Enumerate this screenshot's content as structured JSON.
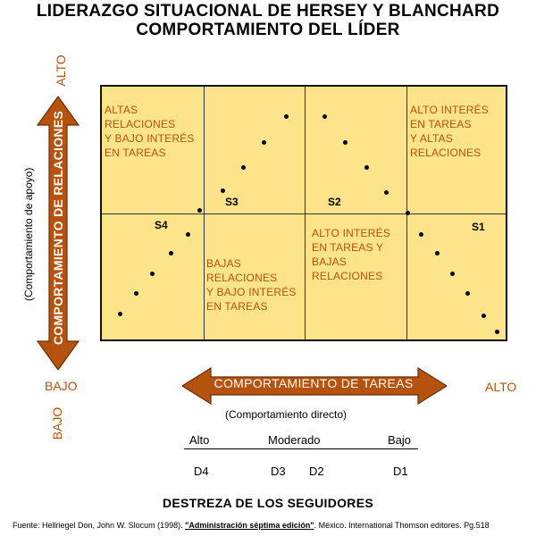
{
  "title": {
    "line1": "LIDERAZGO SITUACIONAL DE HERSEY Y BLANCHARD",
    "line2": "COMPORTAMIENTO DEL LÍDER"
  },
  "quadrants": {
    "top_left": "ALTAS\nRELACIONES\nY BAJO INTERÉS\nEN TAREAS",
    "top_right": "ALTO INTERÉS\nEN TAREAS\nY ALTAS\nRELACIONES",
    "bottom_middle_left": "BAJAS\nRELACIONES\nY BAJO INTERÉS\nEN TAREAS",
    "bottom_middle_right": "ALTO INTERÉS\nEN TAREAS Y\nBAJAS\nRELACIONES"
  },
  "styles": {
    "S1": "S1",
    "S2": "S2",
    "S3": "S3",
    "S4": "S4"
  },
  "vertical_axis": {
    "label": "COMPORTAMIENTO DE RELACIONES",
    "sublabel": "(Comportamiento de apoyo)",
    "high": "ALTO",
    "low": "BAJO"
  },
  "horizontal_axis": {
    "label": "COMPORTAMIENTO DE TAREAS",
    "sublabel": "(Comportamiento directo)",
    "low": "BAJO",
    "high": "ALTO"
  },
  "follower_scale": {
    "levels": [
      "Alto",
      "Moderado",
      "Bajo"
    ],
    "stages": [
      "D4",
      "D3",
      "D2",
      "D1"
    ],
    "title": "DESTREZA DE LOS SEGUIDORES"
  },
  "source": {
    "prefix": "Fuente: Hellriegel Don, John W. Slocum (1998). ",
    "book": "\"Administración séptima edición\"",
    "suffix": ". México. International Thomson editores. Pg.518"
  },
  "colors": {
    "quadrant_fill": "#fde38a",
    "arrow_fill": "#b5520e",
    "text_orange": "#b5520e"
  }
}
